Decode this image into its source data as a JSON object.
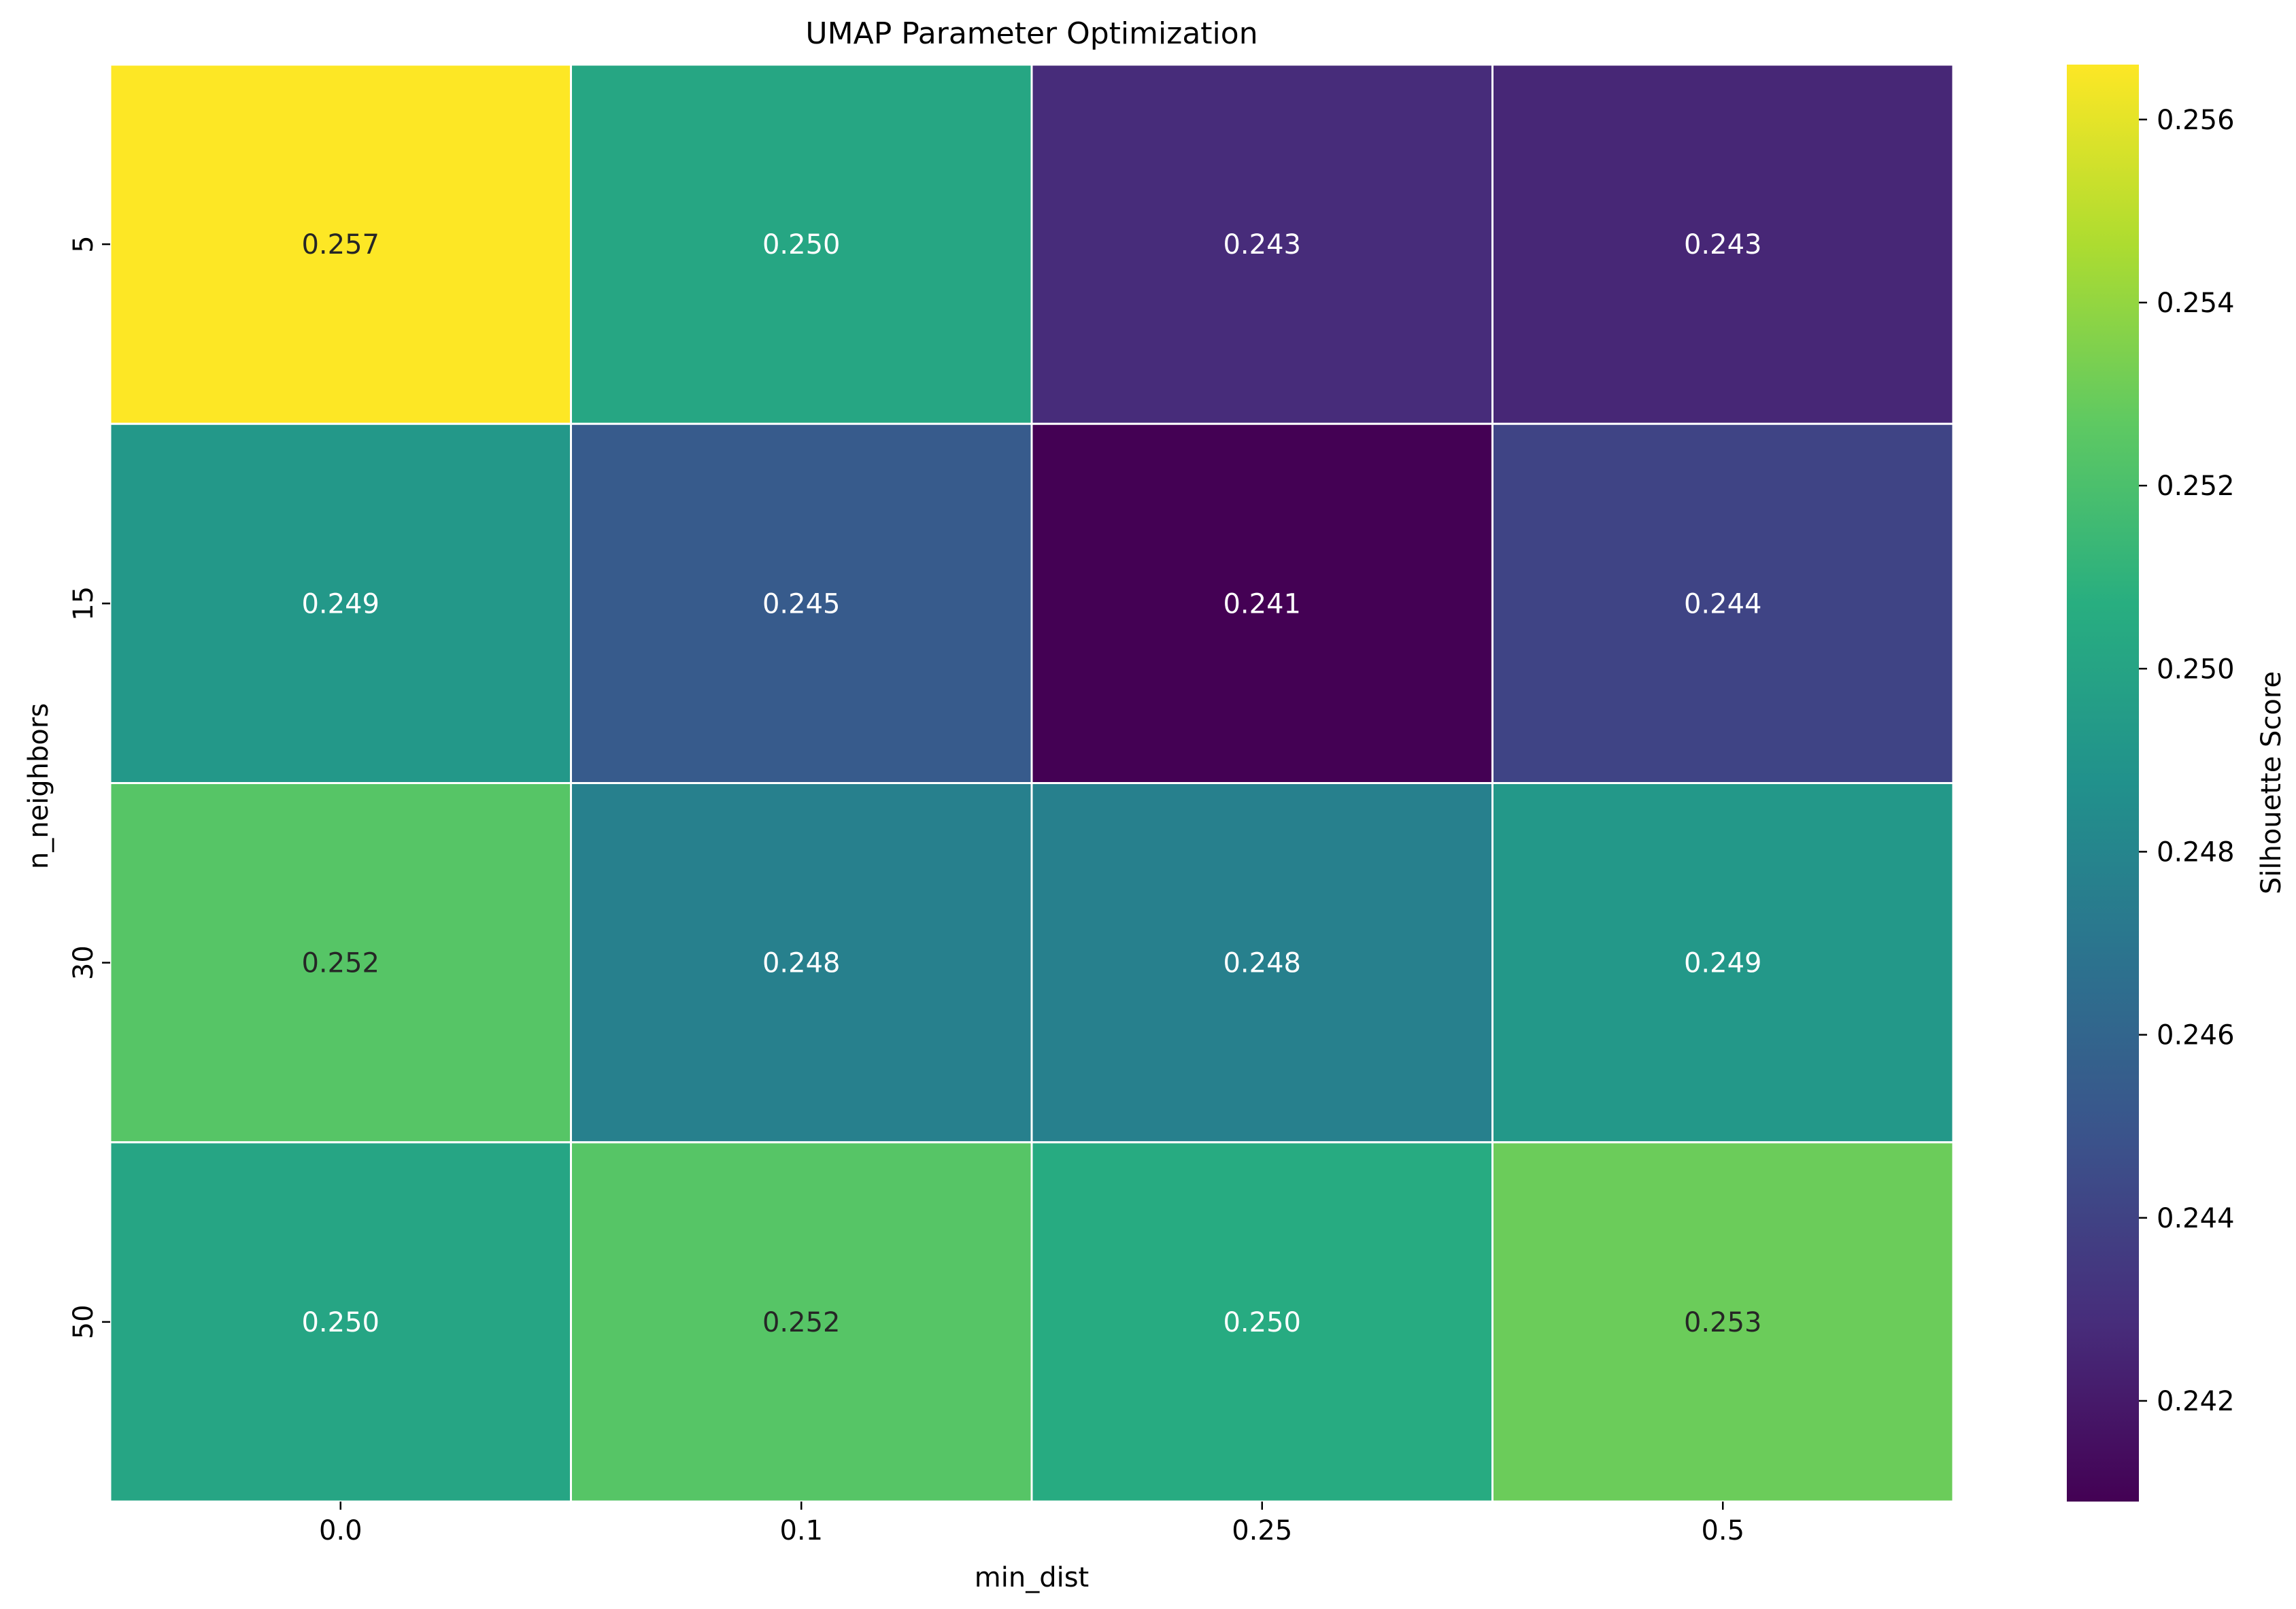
{
  "chart_data": {
    "type": "heatmap",
    "title": "UMAP Parameter Optimization",
    "xlabel": "min_dist",
    "ylabel": "n_neighbors",
    "x_categories": [
      "0.0",
      "0.1",
      "0.25",
      "0.5"
    ],
    "y_categories": [
      "5",
      "15",
      "30",
      "50"
    ],
    "values": [
      [
        0.2566,
        0.2502,
        0.2428,
        0.2426
      ],
      [
        0.2492,
        0.2454,
        0.2409,
        0.2441
      ],
      [
        0.2524,
        0.2477,
        0.2477,
        0.2492
      ],
      [
        0.2501,
        0.2524,
        0.2505,
        0.253
      ]
    ],
    "annotations": [
      [
        "0.257",
        "0.250",
        "0.243",
        "0.243"
      ],
      [
        "0.249",
        "0.245",
        "0.241",
        "0.244"
      ],
      [
        "0.252",
        "0.248",
        "0.248",
        "0.249"
      ],
      [
        "0.250",
        "0.252",
        "0.250",
        "0.253"
      ]
    ],
    "colormap": "viridis",
    "colorbar": {
      "label": "Silhouette Score",
      "range": [
        0.2409,
        0.2566
      ],
      "ticks": [
        "0.242",
        "0.244",
        "0.246",
        "0.248",
        "0.250",
        "0.252",
        "0.254",
        "0.256"
      ]
    },
    "cell_border_color": "#ffffff",
    "grid": false,
    "legend": "colorbar-right"
  }
}
